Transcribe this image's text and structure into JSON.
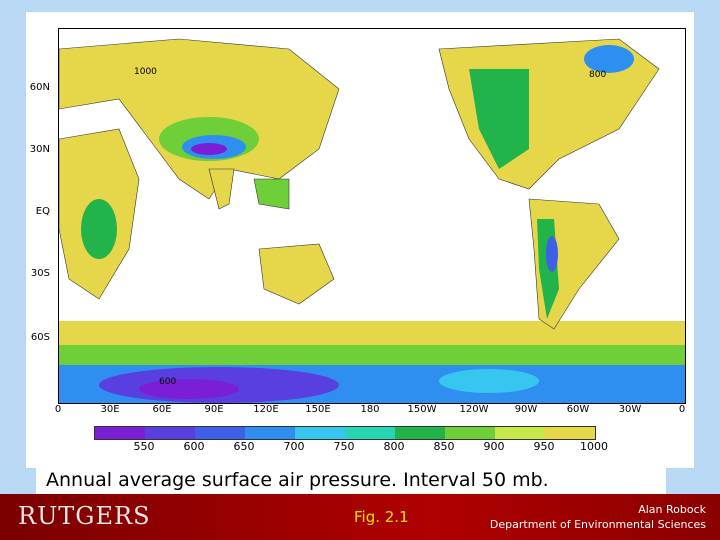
{
  "map": {
    "latitude_labels": [
      "60N",
      "30N",
      "EQ",
      "30S",
      "60S"
    ],
    "longitude_labels": [
      "0",
      "30E",
      "60E",
      "90E",
      "120E",
      "150E",
      "180",
      "150W",
      "120W",
      "90W",
      "60W",
      "30W",
      "0"
    ],
    "contour_labels": [
      "1000",
      "800",
      "600"
    ]
  },
  "legend": {
    "values": [
      "550",
      "600",
      "650",
      "700",
      "750",
      "800",
      "850",
      "900",
      "950",
      "1000"
    ],
    "colors": [
      "#7b1fd6",
      "#5a3fe0",
      "#3f5fe8",
      "#2f8ff0",
      "#36c6f0",
      "#26d6b0",
      "#22b34a",
      "#6ecf39",
      "#c6e84a",
      "#e6d64a"
    ]
  },
  "caption": "Annual average surface air pressure.  Interval 50 mb.",
  "footer": {
    "logo": "RUTGERS",
    "figure": "Fig. 2.1",
    "author": "Alan Robock",
    "department": "Department of Environmental Sciences"
  }
}
